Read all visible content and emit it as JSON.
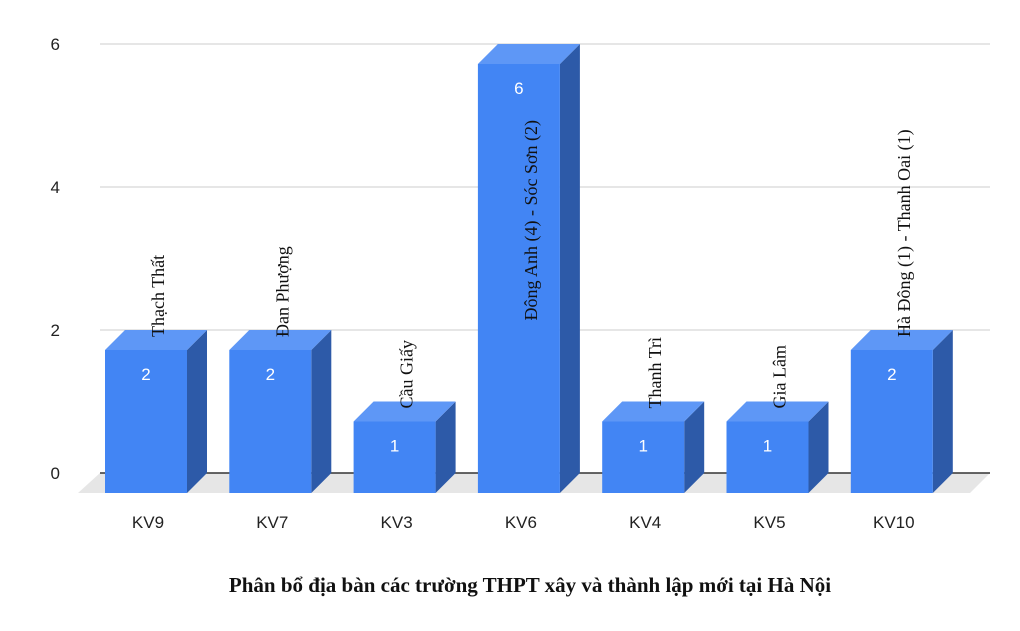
{
  "chart_data": {
    "type": "bar",
    "title": "Phân bổ địa bàn các trường THPT xây và thành lập mới tại Hà Nội",
    "categories": [
      "KV9",
      "KV7",
      "KV3",
      "KV6",
      "KV4",
      "KV5",
      "KV10"
    ],
    "values": [
      2,
      2,
      1,
      6,
      1,
      1,
      2
    ],
    "annotations": [
      "Thạch Thất",
      "Đan Phượng",
      "Cầu Giấy",
      "Đông Anh (4) - Sóc Sơn (2)",
      "Thanh Trì",
      "Gia Lâm",
      "Hà Đông (1) - Thanh Oai (1)"
    ],
    "ylim": [
      0,
      6
    ],
    "yticks": [
      0,
      2,
      4,
      6
    ],
    "grid": true,
    "legend": "none",
    "colors": {
      "bar_front": "#4285f4",
      "bar_top": "#5e97f6",
      "bar_side": "#2d5aa8",
      "floor": "#e6e6e6",
      "grid": "#cccccc"
    }
  }
}
